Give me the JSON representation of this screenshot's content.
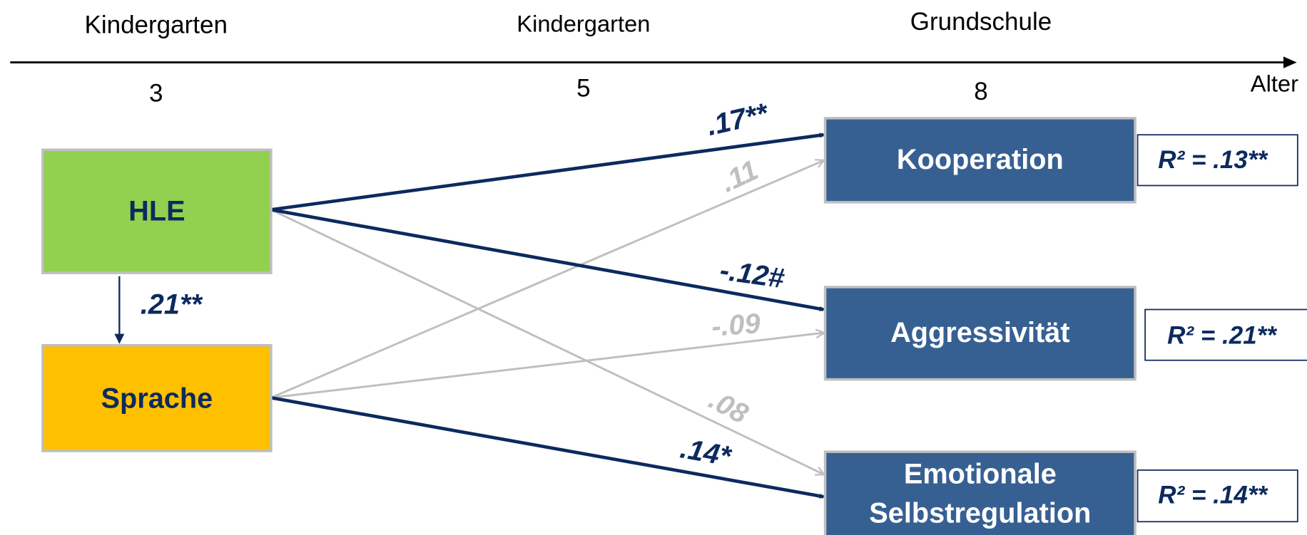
{
  "timeline": {
    "stages": [
      "Kindergarten",
      "Kindergarten",
      "Grundschule"
    ],
    "ages": [
      "3",
      "5",
      "8"
    ],
    "axis_label": "Alter"
  },
  "nodes": [
    {
      "label": "HLE"
    },
    {
      "label": "Sprache"
    },
    {
      "label": "Kooperation"
    },
    {
      "label": "Aggressivität"
    },
    {
      "label_lines": [
        "Emotionale",
        "Selbstregulation"
      ]
    }
  ],
  "edges": [
    {
      "label": ".21**"
    },
    {
      "label": ".17**"
    },
    {
      "label": ".11"
    },
    {
      "label": "-.12#"
    },
    {
      "label": "-.09"
    },
    {
      "label": ".08"
    },
    {
      "label": ".14*"
    }
  ],
  "r_squared": [
    "R² = .13**",
    "R² = .21**",
    "R² = .14**"
  ]
}
